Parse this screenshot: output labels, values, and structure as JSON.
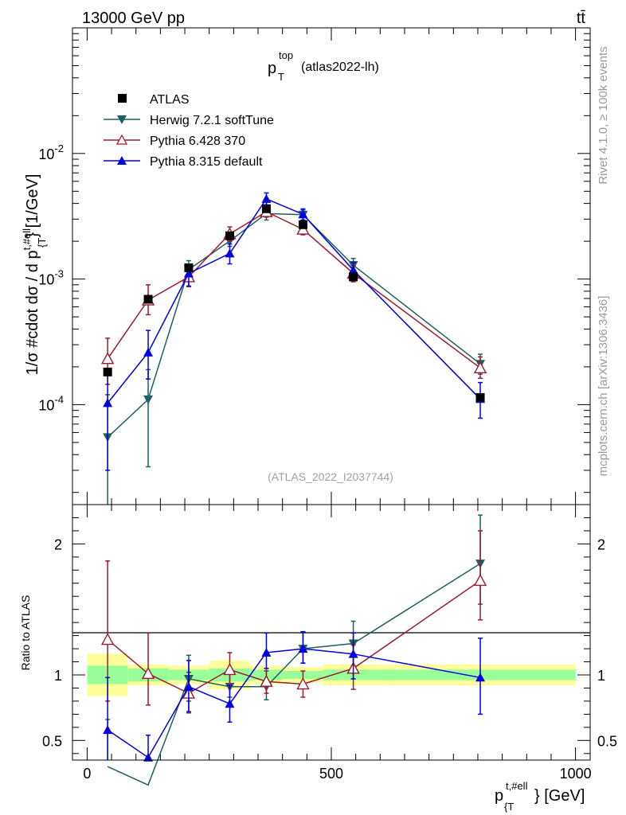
{
  "header": {
    "energy_label": "13000 GeV pp",
    "process_label": "tt̄",
    "title_main": "p",
    "title_sup": "top",
    "title_sub": "T",
    "title_tag": "(atlas2022-lh)",
    "analysis_id": "(ATLAS_2022_I2037744)",
    "side_label_top": "Rivet 4.1.0, ≥ 100k events",
    "side_label_bottom": "mcplots.cern.ch [arXiv:1306.3436]"
  },
  "colors": {
    "atlas": "#000000",
    "herwig": "#1f5f5f",
    "pythia6": "#9b1b30",
    "pythia8": "#0000e0",
    "band_outer": "#ffff99",
    "band_inner": "#99ff99"
  },
  "chart_data": [
    {
      "type": "line",
      "title": "p_T^top (atlas2022-lh)",
      "xlabel": "p_{T}^{t,#ell} [GeV]",
      "ylabel": "1/σ #cdot dσ / d p_{T}^{t,#ell} [1/GeV]",
      "yscale": "log",
      "xlim": [
        -30,
        1030
      ],
      "ylim": [
        1.6e-05,
        0.1
      ],
      "x_ticks": [
        0,
        500,
        1000
      ],
      "y_tick_labels": [
        "10^{-4}",
        "10^{-3}",
        "10^{-2}"
      ],
      "legend": [
        "ATLAS",
        "Herwig 7.2.1 softTune",
        "Pythia 6.428 370",
        "Pythia 8.315 default"
      ],
      "series": [
        {
          "name": "ATLAS",
          "marker": "square",
          "x": [
            42,
            125,
            208,
            292,
            367,
            442,
            545,
            805
          ],
          "values": [
            0.000182,
            0.00069,
            0.00123,
            0.00221,
            0.00363,
            0.00271,
            0.00104,
            0.000114
          ],
          "err_lo": [
            0.000182,
            0.00069,
            0.00123,
            0.00221,
            0.00363,
            0.00271,
            0.00104,
            0.000114
          ],
          "err_hi": [
            0.000182,
            0.00069,
            0.00123,
            0.00221,
            0.00363,
            0.00271,
            0.00104,
            0.000114
          ]
        },
        {
          "name": "Herwig 7.2.1 softTune",
          "marker": "triangle-down",
          "x": [
            42,
            125,
            208,
            292,
            367,
            442,
            545,
            805
          ],
          "values": [
            5.5e-05,
            0.00011,
            0.00119,
            0.00201,
            0.00332,
            0.00325,
            0.00129,
            0.000211
          ],
          "err_lo": [
            1.6e-05,
            3.2e-05,
            0.00098,
            0.00182,
            0.00295,
            0.00295,
            0.00112,
            0.000175
          ],
          "err_hi": [
            0.00012,
            0.00019,
            0.0014,
            0.00222,
            0.00372,
            0.00355,
            0.00146,
            0.000252
          ]
        },
        {
          "name": "Pythia 6.428 370",
          "marker": "triangle-up-open",
          "x": [
            42,
            125,
            208,
            292,
            367,
            442,
            545,
            805
          ],
          "values": [
            0.000232,
            0.00068,
            0.00104,
            0.00229,
            0.00343,
            0.00249,
            0.00111,
            0.000196
          ],
          "err_lo": [
            0.000145,
            0.00052,
            0.00087,
            0.002,
            0.00311,
            0.00225,
            0.00095,
            0.000162
          ],
          "err_hi": [
            0.000338,
            0.0009,
            0.00125,
            0.0026,
            0.00378,
            0.00278,
            0.00128,
            0.00024
          ]
        },
        {
          "name": "Pythia 8.315 default",
          "marker": "triangle-up",
          "x": [
            42,
            125,
            208,
            292,
            367,
            442,
            545,
            805
          ],
          "values": [
            0.000103,
            0.00026,
            0.00111,
            0.0016,
            0.00435,
            0.00328,
            0.00118,
            0.000111
          ],
          "err_lo": [
            3e-05,
            0.00016,
            0.00088,
            0.00132,
            0.0039,
            0.00295,
            0.001,
            7.8e-05
          ],
          "err_hi": [
            0.00018,
            0.00039,
            0.00131,
            0.0019,
            0.00485,
            0.00362,
            0.00136,
            0.00015
          ]
        }
      ]
    },
    {
      "type": "line",
      "title": "",
      "xlabel": "p_{T}^{t,#ell} [GeV]",
      "ylabel": "Ratio to ATLAS",
      "ylim": [
        0.35,
        2.3
      ],
      "y_ticks": [
        0.5,
        1,
        2
      ],
      "y_tick_labels": [
        "0.5",
        "1",
        "2"
      ],
      "bins": [
        [
          0,
          83
        ],
        [
          83,
          167
        ],
        [
          167,
          250
        ],
        [
          250,
          333
        ],
        [
          333,
          400
        ],
        [
          400,
          483
        ],
        [
          483,
          608
        ],
        [
          608,
          1000
        ]
      ],
      "band_outer": [
        [
          0.84,
          1.16
        ],
        [
          0.92,
          1.08
        ],
        [
          0.93,
          1.07
        ],
        [
          0.89,
          1.11
        ],
        [
          0.93,
          1.07
        ],
        [
          0.94,
          1.06
        ],
        [
          0.92,
          1.08
        ],
        [
          0.92,
          1.08
        ]
      ],
      "band_inner": [
        [
          0.93,
          1.07
        ],
        [
          0.95,
          1.05
        ],
        [
          0.96,
          1.04
        ],
        [
          0.95,
          1.05
        ],
        [
          0.96,
          1.04
        ],
        [
          0.97,
          1.03
        ],
        [
          0.96,
          1.04
        ],
        [
          0.96,
          1.04
        ]
      ],
      "series": [
        {
          "name": "Herwig 7.2.1 softTune",
          "marker": "triangle-down",
          "x": [
            42,
            125,
            208,
            292,
            367,
            442,
            545,
            805
          ],
          "values": [
            0.3,
            0.16,
            0.97,
            0.91,
            0.91,
            1.2,
            1.24,
            1.85
          ],
          "err_lo": [
            0.0,
            0.0,
            0.8,
            0.83,
            0.81,
            1.09,
            1.07,
            1.54
          ],
          "err_hi": [
            0.66,
            0.28,
            1.15,
            1.01,
            1.03,
            1.33,
            1.41,
            2.22
          ]
        },
        {
          "name": "Pythia 6.428 370",
          "marker": "triangle-up-open",
          "x": [
            42,
            125,
            208,
            292,
            367,
            442,
            545,
            805
          ],
          "values": [
            1.27,
            1.01,
            0.86,
            1.04,
            0.95,
            0.93,
            1.05,
            1.72
          ],
          "err_lo": [
            0.8,
            0.77,
            0.71,
            0.91,
            0.86,
            0.83,
            0.89,
            1.42
          ],
          "err_hi": [
            1.87,
            1.32,
            1.02,
            1.17,
            1.05,
            1.03,
            1.23,
            2.1
          ]
        },
        {
          "name": "Pythia 8.315 default",
          "marker": "triangle-up",
          "x": [
            42,
            125,
            208,
            292,
            367,
            442,
            545,
            805
          ],
          "values": [
            0.58,
            0.37,
            0.91,
            0.78,
            1.17,
            1.2,
            1.16,
            0.98
          ],
          "err_lo": [
            0.35,
            0.23,
            0.72,
            0.64,
            1.05,
            1.09,
            0.97,
            0.7
          ],
          "err_hi": [
            0.98,
            0.54,
            1.11,
            0.92,
            1.32,
            1.33,
            1.32,
            1.28
          ]
        }
      ]
    }
  ]
}
